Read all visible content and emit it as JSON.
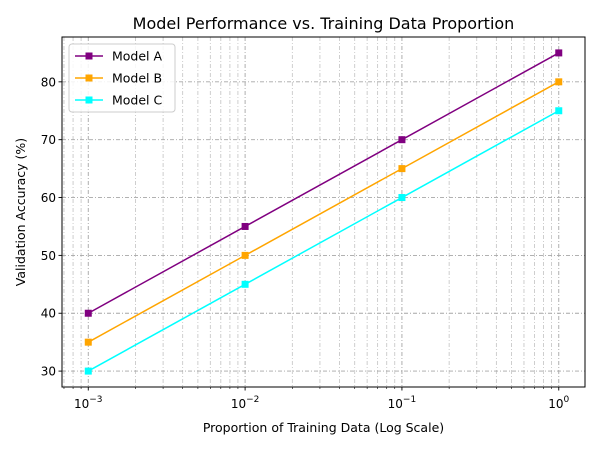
{
  "chart_data": {
    "type": "line",
    "title": "Model Performance vs. Training Data Proportion",
    "xlabel": "Proportion of Training Data (Log Scale)",
    "ylabel": "Validation Accuracy (%)",
    "xscale": "log",
    "xlim": [
      0.00068,
      1.47
    ],
    "ylim": [
      27.25,
      87.75
    ],
    "x": [
      0.001,
      0.01,
      0.1,
      1
    ],
    "x_tick_labels": [
      {
        "value": 0.001,
        "base": "10",
        "exp": "−3"
      },
      {
        "value": 0.01,
        "base": "10",
        "exp": "−2"
      },
      {
        "value": 0.1,
        "base": "10",
        "exp": "−1"
      },
      {
        "value": 1,
        "base": "10",
        "exp": "0"
      }
    ],
    "y_ticks": [
      30,
      40,
      50,
      60,
      70,
      80
    ],
    "grid": true,
    "grid_style": "dash-dot, major and minor",
    "legend_position": "top-left",
    "marker": "square",
    "series": [
      {
        "name": "Model A",
        "color": "#800080",
        "values": [
          40,
          55,
          70,
          85
        ]
      },
      {
        "name": "Model B",
        "color": "#FFA500",
        "values": [
          35,
          50,
          65,
          80
        ]
      },
      {
        "name": "Model C",
        "color": "#00FFFF",
        "values": [
          30,
          45,
          60,
          75
        ]
      }
    ]
  }
}
